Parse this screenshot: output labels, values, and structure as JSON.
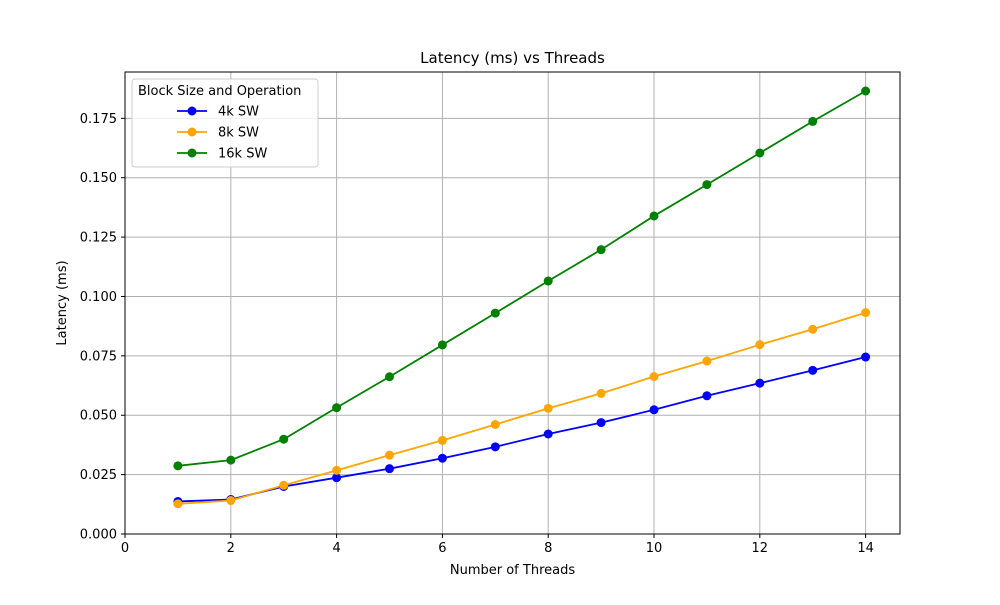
{
  "chart_data": {
    "type": "line",
    "title": "Latency (ms) vs Threads",
    "xlabel": "Number of Threads",
    "ylabel": "Latency (ms)",
    "xlim": [
      0,
      14.65
    ],
    "ylim": [
      0,
      0.1945
    ],
    "xticks": [
      0,
      2,
      4,
      6,
      8,
      10,
      12,
      14
    ],
    "xtick_labels": [
      "0",
      "2",
      "4",
      "6",
      "8",
      "10",
      "12",
      "14"
    ],
    "yticks": [
      0,
      0.025,
      0.05,
      0.075,
      0.1,
      0.125,
      0.15,
      0.175
    ],
    "ytick_labels": [
      "0.000",
      "0.025",
      "0.050",
      "0.075",
      "0.100",
      "0.125",
      "0.150",
      "0.175"
    ],
    "grid": true,
    "legend": {
      "title": "Block Size and Operation",
      "position": "top-left"
    },
    "x": [
      1,
      2,
      3,
      4,
      5,
      6,
      7,
      8,
      9,
      10,
      11,
      12,
      13,
      14
    ],
    "series": [
      {
        "name": "4k SW",
        "color": "#0000ff",
        "values": [
          0.0137,
          0.0145,
          0.02,
          0.0237,
          0.0275,
          0.0319,
          0.0367,
          0.0421,
          0.0469,
          0.0523,
          0.0582,
          0.0635,
          0.0689,
          0.0745
        ]
      },
      {
        "name": "8k SW",
        "color": "#ffa500",
        "values": [
          0.0127,
          0.0141,
          0.0205,
          0.0268,
          0.0332,
          0.0394,
          0.0461,
          0.0529,
          0.0592,
          0.0663,
          0.0728,
          0.0797,
          0.0862,
          0.0932
        ]
      },
      {
        "name": "16k SW",
        "color": "#008000",
        "values": [
          0.0287,
          0.0311,
          0.0399,
          0.0532,
          0.0662,
          0.0796,
          0.093,
          0.1065,
          0.1197,
          0.1339,
          0.1471,
          0.1604,
          0.1737,
          0.1865
        ]
      }
    ]
  }
}
